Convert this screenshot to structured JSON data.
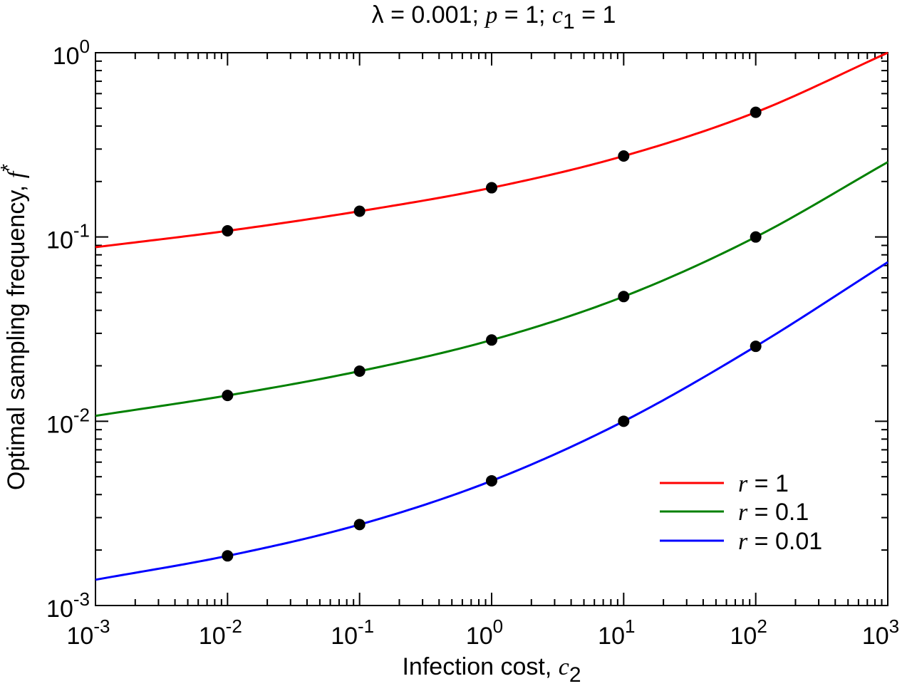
{
  "chart_data": {
    "type": "line",
    "title": {
      "parts": [
        {
          "t": "λ = 0.001;  ",
          "i": false
        },
        {
          "t": "p",
          "i": true
        },
        {
          "t": " = 1;  ",
          "i": false
        },
        {
          "t": "c",
          "i": true
        },
        {
          "t": "1",
          "i": false,
          "sub": true
        },
        {
          "t": " = 1",
          "i": false
        }
      ]
    },
    "xlabel": {
      "text": "Infection cost, ",
      "var": "c",
      "sub": "2"
    },
    "ylabel": {
      "text": "Optimal sampling frequency, ",
      "var": "f",
      "sup": "*"
    },
    "xscale": "log",
    "yscale": "log",
    "xlim": [
      0.001,
      1000
    ],
    "ylim": [
      0.001,
      1
    ],
    "xticks": [
      {
        "base": "10",
        "exp": "-3",
        "value": 0.001
      },
      {
        "base": "10",
        "exp": "-2",
        "value": 0.01
      },
      {
        "base": "10",
        "exp": "-1",
        "value": 0.1
      },
      {
        "base": "10",
        "exp": "0",
        "value": 1
      },
      {
        "base": "10",
        "exp": "1",
        "value": 10
      },
      {
        "base": "10",
        "exp": "2",
        "value": 100
      },
      {
        "base": "10",
        "exp": "3",
        "value": 1000
      }
    ],
    "yticks": [
      {
        "base": "10",
        "exp": "-3",
        "value": 0.001
      },
      {
        "base": "10",
        "exp": "-2",
        "value": 0.01
      },
      {
        "base": "10",
        "exp": "-1",
        "value": 0.1
      },
      {
        "base": "10",
        "exp": "0",
        "value": 1
      }
    ],
    "grid": false,
    "legend_position": "bottom-right",
    "series": [
      {
        "name": "r = 1",
        "legend": {
          "var": "r",
          "rest": " = 1"
        },
        "color": "#ff0000",
        "curve_x": [
          0.001,
          0.01,
          0.1,
          1,
          10,
          100,
          1000
        ],
        "curve_y": [
          0.088,
          0.108,
          0.138,
          0.185,
          0.275,
          0.475,
          1.0
        ],
        "points_x": [
          0.01,
          0.1,
          1,
          10,
          100
        ],
        "points_y": [
          0.108,
          0.138,
          0.185,
          0.275,
          0.475
        ]
      },
      {
        "name": "r = 0.1",
        "legend": {
          "var": "r",
          "rest": " = 0.1"
        },
        "color": "#008000",
        "curve_x": [
          0.001,
          0.01,
          0.1,
          1,
          10,
          100,
          1000
        ],
        "curve_y": [
          0.0107,
          0.0138,
          0.0187,
          0.0276,
          0.0475,
          0.1,
          0.255
        ],
        "points_x": [
          0.01,
          0.1,
          1,
          10,
          100
        ],
        "points_y": [
          0.0138,
          0.0187,
          0.0276,
          0.0475,
          0.1
        ]
      },
      {
        "name": "r = 0.01",
        "legend": {
          "var": "r",
          "rest": " = 0.01"
        },
        "color": "#0000ff",
        "curve_x": [
          0.001,
          0.01,
          0.1,
          1,
          10,
          100,
          1000
        ],
        "curve_y": [
          0.00138,
          0.00186,
          0.00275,
          0.00475,
          0.01,
          0.0255,
          0.073
        ],
        "points_x": [
          0.01,
          0.1,
          1,
          10,
          100
        ],
        "points_y": [
          0.00186,
          0.00275,
          0.00475,
          0.01,
          0.0255
        ]
      }
    ]
  }
}
